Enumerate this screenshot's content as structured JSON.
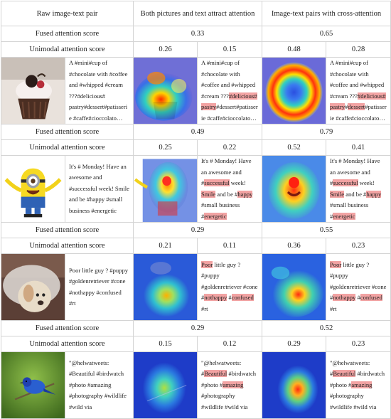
{
  "headers": {
    "col1": "Raw image-text pair",
    "col2": "Both pictures and text attract attention",
    "col3": "Image-text pairs with cross-attention"
  },
  "labels": {
    "fused": "Fused attention score",
    "unimodal": "Unimodal attention score"
  },
  "rows": [
    {
      "fused_both": "0.33",
      "fused_cross": "0.65",
      "uni_both_img": "0.26",
      "uni_both_txt": "0.15",
      "uni_cross_img": "0.48",
      "uni_cross_txt": "0.28",
      "raw_text": "A #mini#cup of #chocolate with #coffee and #whipped #cream ???#delicious# pastry#dessert#patisserie #caffe#cioccolato…",
      "both_text": [
        {
          "t": "A #mini#cup of #chocolate with #coffee and #whipped #cream ???",
          "h": false
        },
        {
          "t": "#delicious#",
          "h": true
        },
        {
          "t": " ",
          "h": false
        },
        {
          "t": "pastry",
          "h": true
        },
        {
          "t": "#dessert#patisserie #caffe#cioccolato…",
          "h": false
        }
      ],
      "cross_text": [
        {
          "t": "A #mini#cup of #chocolate with #coffee and #whipped #cream ???",
          "h": false
        },
        {
          "t": "#delicious#",
          "h": true
        },
        {
          "t": " ",
          "h": false
        },
        {
          "t": "pastry",
          "h": true
        },
        {
          "t": "#",
          "h": false
        },
        {
          "t": "dessert",
          "h": true
        },
        {
          "t": "#patisserie #caffe#cioccolato…",
          "h": false
        }
      ]
    },
    {
      "fused_both": "0.49",
      "fused_cross": "0.79",
      "uni_both_img": "0.25",
      "uni_both_txt": "0.22",
      "uni_cross_img": "0.52",
      "uni_cross_txt": "0.41",
      "raw_text": "It's # Monday! Have an awesome and #successful week! Smile and be #happy #small business #energetic",
      "both_text": [
        {
          "t": "It's # Monday! Have an awesome and #",
          "h": false
        },
        {
          "t": "successful",
          "h": true
        },
        {
          "t": " week! ",
          "h": false
        },
        {
          "t": "Smile",
          "h": true
        },
        {
          "t": " and be #",
          "h": false
        },
        {
          "t": "happy",
          "h": true
        },
        {
          "t": " #small business #",
          "h": false
        },
        {
          "t": "energetic",
          "h": true
        }
      ],
      "cross_text": [
        {
          "t": "It's # Monday! Have an awesome and #",
          "h": false
        },
        {
          "t": "successful",
          "h": true
        },
        {
          "t": " week! ",
          "h": false
        },
        {
          "t": "Smile",
          "h": true
        },
        {
          "t": " and be #",
          "h": false
        },
        {
          "t": "happy",
          "h": true
        },
        {
          "t": " #small business #",
          "h": false
        },
        {
          "t": "energetic",
          "h": true
        }
      ]
    },
    {
      "fused_both": "0.29",
      "fused_cross": "0.55",
      "uni_both_img": "0.21",
      "uni_both_txt": "0.11",
      "uni_cross_img": "0.36",
      "uni_cross_txt": "0.23",
      "raw_text": "Poor little guy ? #puppy #goldenretriever #cone #nothappy #confused #rt",
      "both_text": [
        {
          "t": "Poor",
          "h": true
        },
        {
          "t": " little guy ? #puppy #goldenretriever #cone #",
          "h": false
        },
        {
          "t": "nothappy",
          "h": true
        },
        {
          "t": " #",
          "h": false
        },
        {
          "t": "confused",
          "h": true
        },
        {
          "t": " #rt",
          "h": false
        }
      ],
      "cross_text": [
        {
          "t": "Poor",
          "h": true
        },
        {
          "t": " little guy ? #puppy #goldenretriever #cone #",
          "h": false
        },
        {
          "t": "nothappy",
          "h": true
        },
        {
          "t": " #",
          "h": false
        },
        {
          "t": "confused",
          "h": true
        },
        {
          "t": " #rt",
          "h": false
        }
      ]
    },
    {
      "fused_both": "0.29",
      "fused_cross": "0.52",
      "uni_both_img": "0.15",
      "uni_both_txt": "0.12",
      "uni_cross_img": "0.29",
      "uni_cross_txt": "0.23",
      "raw_text": "\"@helwatweets: #Beautiful #birdwatch #photo #amazing #photography #wildlife #wild via",
      "both_text": [
        {
          "t": "\"@helwatweets: #",
          "h": false
        },
        {
          "t": "Beautiful",
          "h": true
        },
        {
          "t": " #birdwatch #photo #",
          "h": false
        },
        {
          "t": "amazing",
          "h": true
        },
        {
          "t": " #photography #wildlife #wild via",
          "h": false
        }
      ],
      "cross_text": [
        {
          "t": "\"@helwatweets: #",
          "h": false
        },
        {
          "t": "Beautiful",
          "h": true
        },
        {
          "t": " #birdwatch #photo #",
          "h": false
        },
        {
          "t": "amazing",
          "h": true
        },
        {
          "t": " #photography #wildlife #wild via",
          "h": false
        }
      ]
    }
  ],
  "colors": {
    "highlight": "#f2a3a3",
    "border": "#d4d4d4"
  }
}
